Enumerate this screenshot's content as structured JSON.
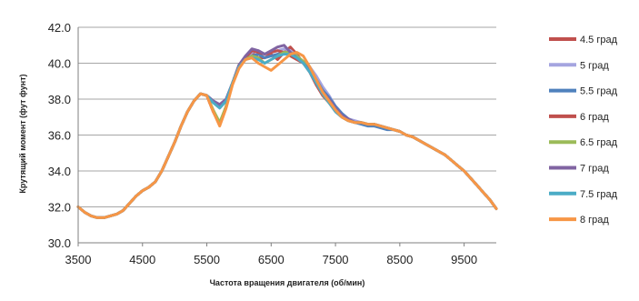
{
  "chart_data": {
    "type": "line",
    "xlabel": "Частота вращения двигателя (об/мин)",
    "ylabel": "Крутящий момент (фут фунт)",
    "xlim": [
      3500,
      10000
    ],
    "ylim": [
      30.0,
      42.0
    ],
    "xticks": [
      {
        "value": 3500,
        "label": "3500"
      },
      {
        "value": 4500,
        "label": "4500"
      },
      {
        "value": 5500,
        "label": "5500"
      },
      {
        "value": 6500,
        "label": "6500"
      },
      {
        "value": 7500,
        "label": "7500"
      },
      {
        "value": 8500,
        "label": "8500"
      },
      {
        "value": 9500,
        "label": "9500"
      }
    ],
    "yticks": [
      {
        "value": 30,
        "label": "30.0"
      },
      {
        "value": 32,
        "label": "32.0"
      },
      {
        "value": 34,
        "label": "34.0"
      },
      {
        "value": 36,
        "label": "36.0"
      },
      {
        "value": 38,
        "label": "38.0"
      },
      {
        "value": 40,
        "label": "40.0"
      },
      {
        "value": 42,
        "label": "42.0"
      }
    ],
    "grid": "horizontal",
    "legend_position": "right",
    "x": [
      3500,
      3600,
      3700,
      3800,
      3900,
      4000,
      4100,
      4200,
      4300,
      4400,
      4500,
      4600,
      4700,
      4800,
      4900,
      5000,
      5100,
      5200,
      5300,
      5400,
      5500,
      5600,
      5700,
      5800,
      5900,
      6000,
      6100,
      6200,
      6300,
      6400,
      6500,
      6600,
      6700,
      6800,
      6900,
      7000,
      7100,
      7200,
      7300,
      7400,
      7500,
      7600,
      7700,
      7800,
      7900,
      8000,
      8100,
      8200,
      8300,
      8400,
      8500,
      8600,
      8700,
      8800,
      8900,
      9000,
      9100,
      9200,
      9300,
      9400,
      9500,
      9600,
      9700,
      9800,
      9900,
      10000
    ],
    "series": [
      {
        "name": "4.5 град",
        "color": "#c0504d",
        "values": [
          32.0,
          31.7,
          31.5,
          31.4,
          31.4,
          31.5,
          31.6,
          31.8,
          32.2,
          32.6,
          32.9,
          33.1,
          33.4,
          34.0,
          34.8,
          35.6,
          36.5,
          37.3,
          37.9,
          38.3,
          38.2,
          37.3,
          36.6,
          37.6,
          38.9,
          39.8,
          40.2,
          40.6,
          40.3,
          40.3,
          40.5,
          40.2,
          40.6,
          40.9,
          40.5,
          40.0,
          39.5,
          38.8,
          38.2,
          37.8,
          37.3,
          37.0,
          36.8,
          36.7,
          36.7,
          36.6,
          36.6,
          36.5,
          36.4,
          36.3,
          36.2,
          36.0,
          35.9,
          35.7,
          35.5,
          35.3,
          35.1,
          34.9,
          34.6,
          34.3,
          34.0,
          33.6,
          33.2,
          32.8,
          32.4,
          31.9
        ]
      },
      {
        "name": "5 град",
        "color": "#a5a5e0",
        "values": [
          32.0,
          31.7,
          31.5,
          31.4,
          31.4,
          31.5,
          31.6,
          31.8,
          32.2,
          32.6,
          32.9,
          33.1,
          33.4,
          34.0,
          34.8,
          35.6,
          36.5,
          37.3,
          37.9,
          38.3,
          38.2,
          37.9,
          37.7,
          38.0,
          38.9,
          39.9,
          40.3,
          40.6,
          40.7,
          40.5,
          40.6,
          40.7,
          40.8,
          40.7,
          40.4,
          40.1,
          39.8,
          39.3,
          38.7,
          38.2,
          37.6,
          37.2,
          36.9,
          36.8,
          36.7,
          36.6,
          36.5,
          36.5,
          36.4,
          36.3,
          36.2,
          36.0,
          35.9,
          35.7,
          35.5,
          35.3,
          35.1,
          34.9,
          34.6,
          34.3,
          34.0,
          33.6,
          33.2,
          32.8,
          32.4,
          31.9
        ]
      },
      {
        "name": "5.5 град",
        "color": "#4f81bd",
        "values": [
          32.0,
          31.7,
          31.5,
          31.4,
          31.4,
          31.5,
          31.6,
          31.8,
          32.2,
          32.6,
          32.9,
          33.1,
          33.4,
          34.0,
          34.8,
          35.6,
          36.5,
          37.3,
          37.9,
          38.3,
          38.2,
          37.9,
          37.6,
          38.0,
          38.9,
          39.8,
          40.2,
          40.4,
          40.5,
          40.3,
          40.4,
          40.5,
          40.6,
          40.5,
          40.3,
          40.1,
          39.7,
          39.1,
          38.5,
          38.1,
          37.6,
          37.2,
          36.9,
          36.7,
          36.6,
          36.5,
          36.5,
          36.4,
          36.3,
          36.3,
          36.2,
          36.0,
          35.9,
          35.7,
          35.5,
          35.3,
          35.1,
          34.9,
          34.6,
          34.3,
          34.0,
          33.6,
          33.2,
          32.8,
          32.4,
          31.9
        ]
      },
      {
        "name": "6  град",
        "color": "#c0504d",
        "values": [
          32.0,
          31.7,
          31.5,
          31.4,
          31.4,
          31.5,
          31.6,
          31.8,
          32.2,
          32.6,
          32.9,
          33.1,
          33.4,
          34.0,
          34.8,
          35.6,
          36.5,
          37.3,
          37.9,
          38.3,
          38.2,
          37.3,
          36.6,
          37.6,
          38.9,
          39.9,
          40.3,
          40.7,
          40.6,
          40.5,
          40.6,
          40.7,
          40.6,
          40.4,
          40.2,
          40.0,
          39.6,
          39.0,
          38.4,
          37.9,
          37.4,
          37.0,
          36.8,
          36.7,
          36.7,
          36.6,
          36.6,
          36.5,
          36.4,
          36.3,
          36.2,
          36.0,
          35.9,
          35.7,
          35.5,
          35.3,
          35.1,
          34.9,
          34.6,
          34.3,
          34.0,
          33.6,
          33.2,
          32.8,
          32.4,
          31.9
        ]
      },
      {
        "name": "6.5 град",
        "color": "#9bbb59",
        "values": [
          32.0,
          31.7,
          31.5,
          31.4,
          31.4,
          31.5,
          31.6,
          31.8,
          32.2,
          32.6,
          32.9,
          33.1,
          33.4,
          34.0,
          34.8,
          35.6,
          36.5,
          37.3,
          37.9,
          38.3,
          38.2,
          37.4,
          36.7,
          37.6,
          38.9,
          39.8,
          40.2,
          40.4,
          40.3,
          40.0,
          40.2,
          40.4,
          40.6,
          40.6,
          40.4,
          40.1,
          39.6,
          39.0,
          38.3,
          37.8,
          37.4,
          37.0,
          36.8,
          36.7,
          36.7,
          36.6,
          36.6,
          36.5,
          36.4,
          36.3,
          36.2,
          36.0,
          35.9,
          35.7,
          35.5,
          35.3,
          35.1,
          34.9,
          34.6,
          34.3,
          34.0,
          33.6,
          33.2,
          32.8,
          32.4,
          31.9
        ]
      },
      {
        "name": "7 град",
        "color": "#8064a2",
        "values": [
          32.0,
          31.7,
          31.5,
          31.4,
          31.4,
          31.5,
          31.6,
          31.8,
          32.2,
          32.6,
          32.9,
          33.1,
          33.4,
          34.0,
          34.8,
          35.6,
          36.5,
          37.3,
          37.9,
          38.3,
          38.2,
          37.9,
          37.7,
          38.0,
          38.9,
          39.9,
          40.4,
          40.8,
          40.7,
          40.5,
          40.7,
          40.9,
          41.0,
          40.6,
          40.3,
          40.0,
          39.6,
          39.0,
          38.4,
          38.0,
          37.5,
          37.1,
          36.9,
          36.7,
          36.7,
          36.6,
          36.6,
          36.5,
          36.4,
          36.3,
          36.2,
          36.0,
          35.9,
          35.7,
          35.5,
          35.3,
          35.1,
          34.9,
          34.6,
          34.3,
          34.0,
          33.6,
          33.2,
          32.8,
          32.4,
          31.9
        ]
      },
      {
        "name": "7.5 град",
        "color": "#4bacc6",
        "values": [
          32.0,
          31.7,
          31.5,
          31.4,
          31.4,
          31.5,
          31.6,
          31.8,
          32.2,
          32.6,
          32.9,
          33.1,
          33.4,
          34.0,
          34.8,
          35.6,
          36.5,
          37.3,
          37.9,
          38.3,
          38.2,
          37.8,
          37.5,
          37.9,
          38.9,
          39.8,
          40.2,
          40.3,
          40.2,
          40.0,
          40.2,
          40.4,
          40.5,
          40.5,
          40.3,
          40.0,
          39.5,
          38.9,
          38.3,
          37.8,
          37.3,
          37.0,
          36.8,
          36.7,
          36.7,
          36.6,
          36.6,
          36.5,
          36.4,
          36.3,
          36.2,
          36.0,
          35.9,
          35.7,
          35.5,
          35.3,
          35.1,
          34.9,
          34.6,
          34.3,
          34.0,
          33.6,
          33.2,
          32.8,
          32.4,
          31.9
        ]
      },
      {
        "name": "8 град",
        "color": "#f79646",
        "values": [
          32.0,
          31.7,
          31.5,
          31.4,
          31.4,
          31.5,
          31.6,
          31.8,
          32.2,
          32.6,
          32.9,
          33.1,
          33.4,
          34.0,
          34.8,
          35.6,
          36.5,
          37.3,
          37.9,
          38.3,
          38.2,
          37.3,
          36.5,
          37.5,
          38.8,
          39.7,
          40.2,
          40.3,
          40.0,
          39.8,
          39.6,
          39.9,
          40.2,
          40.5,
          40.6,
          40.4,
          39.8,
          39.1,
          38.4,
          37.9,
          37.4,
          37.0,
          36.8,
          36.7,
          36.7,
          36.6,
          36.6,
          36.5,
          36.4,
          36.3,
          36.2,
          36.0,
          35.9,
          35.7,
          35.5,
          35.3,
          35.1,
          34.9,
          34.6,
          34.3,
          34.0,
          33.6,
          33.2,
          32.8,
          32.4,
          31.9
        ]
      }
    ]
  }
}
